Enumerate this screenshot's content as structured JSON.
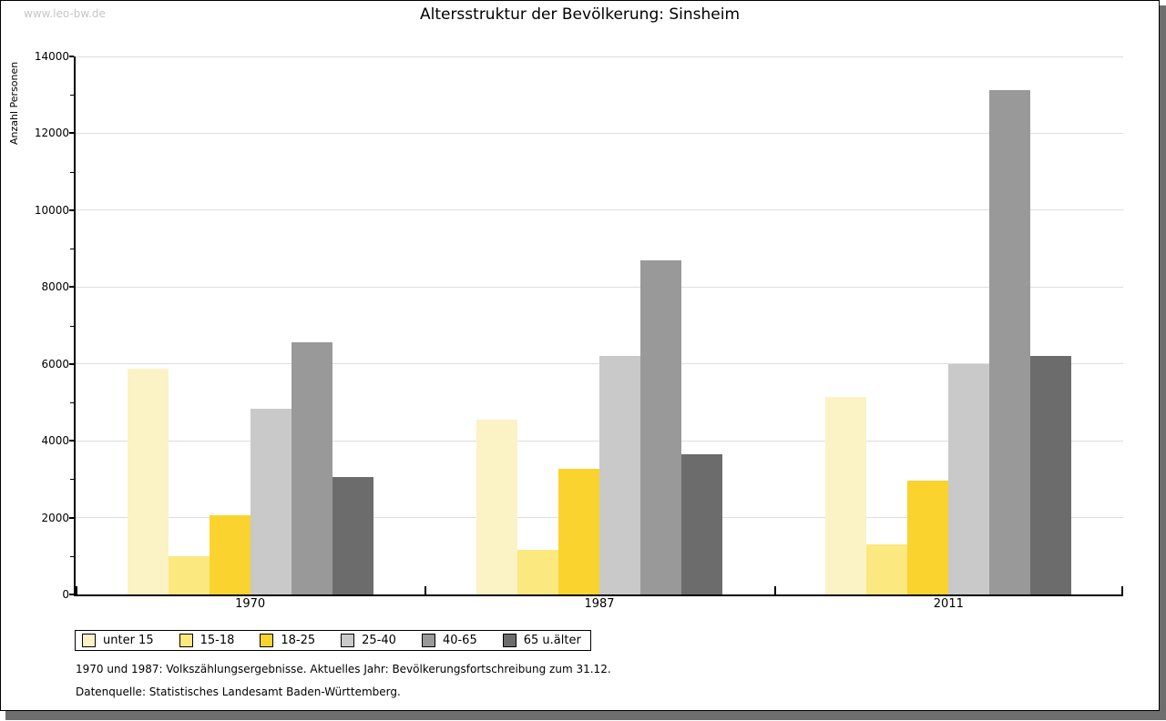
{
  "page": {
    "watermark": "www.leo-bw.de",
    "title": "Altersstruktur der Bevölkerung: Sinsheim",
    "footnote_line1": "1970 und 1987: Volkszählungsergebnisse. Aktuelles Jahr: Bevölkerungsfortschreibung zum 31.12.",
    "footnote_line2": "Datenquelle: Statistisches Landesamt Baden-Württemberg."
  },
  "chart_data": {
    "type": "bar",
    "title": "Altersstruktur der Bevölkerung: Sinsheim",
    "xlabel": "",
    "ylabel": "Anzahl Personen",
    "categories": [
      "1970",
      "1987",
      "2011"
    ],
    "series": [
      {
        "name": "unter 15",
        "color": "#FBF3C6",
        "values": [
          5880,
          4550,
          5140
        ]
      },
      {
        "name": "15-18",
        "color": "#FBE87E",
        "values": [
          1000,
          1170,
          1310
        ]
      },
      {
        "name": "18-25",
        "color": "#FBD32E",
        "values": [
          2060,
          3260,
          2970
        ]
      },
      {
        "name": "25-40",
        "color": "#C9C9C9",
        "values": [
          4840,
          6210,
          5990
        ]
      },
      {
        "name": "40-65",
        "color": "#999999",
        "values": [
          6560,
          8700,
          13130
        ]
      },
      {
        "name": "65 u.älter",
        "color": "#6C6C6C",
        "values": [
          3060,
          3660,
          6210
        ]
      }
    ],
    "ylim": [
      0,
      14000
    ],
    "yticks": [
      0,
      2000,
      4000,
      6000,
      8000,
      10000,
      12000,
      14000
    ],
    "yminor_step": 1000,
    "grid": "horizontal-major-only",
    "gridline_color": "#DEDEDE",
    "legend_position": "bottom-left"
  }
}
